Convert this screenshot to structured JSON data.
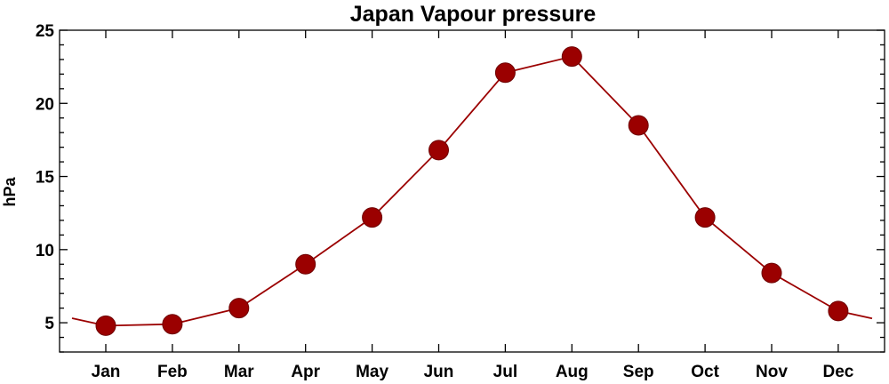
{
  "chart_data": {
    "type": "line",
    "title": "Japan Vapour pressure",
    "xlabel": "",
    "ylabel": "hPa",
    "categories": [
      "Jan",
      "Feb",
      "Mar",
      "Apr",
      "May",
      "Jun",
      "Jul",
      "Aug",
      "Sep",
      "Oct",
      "Nov",
      "Dec"
    ],
    "series": [
      {
        "values": [
          4.8,
          4.9,
          6.0,
          9.0,
          12.2,
          16.8,
          22.1,
          23.2,
          18.5,
          12.2,
          8.4,
          5.8
        ]
      }
    ],
    "ylim": [
      3,
      25
    ],
    "yticks": [
      5,
      10,
      15,
      20,
      25
    ],
    "grid": false,
    "colors": {
      "line": "#9b0000",
      "marker": "#9b0000",
      "marker_edge": "#6e0000"
    }
  }
}
